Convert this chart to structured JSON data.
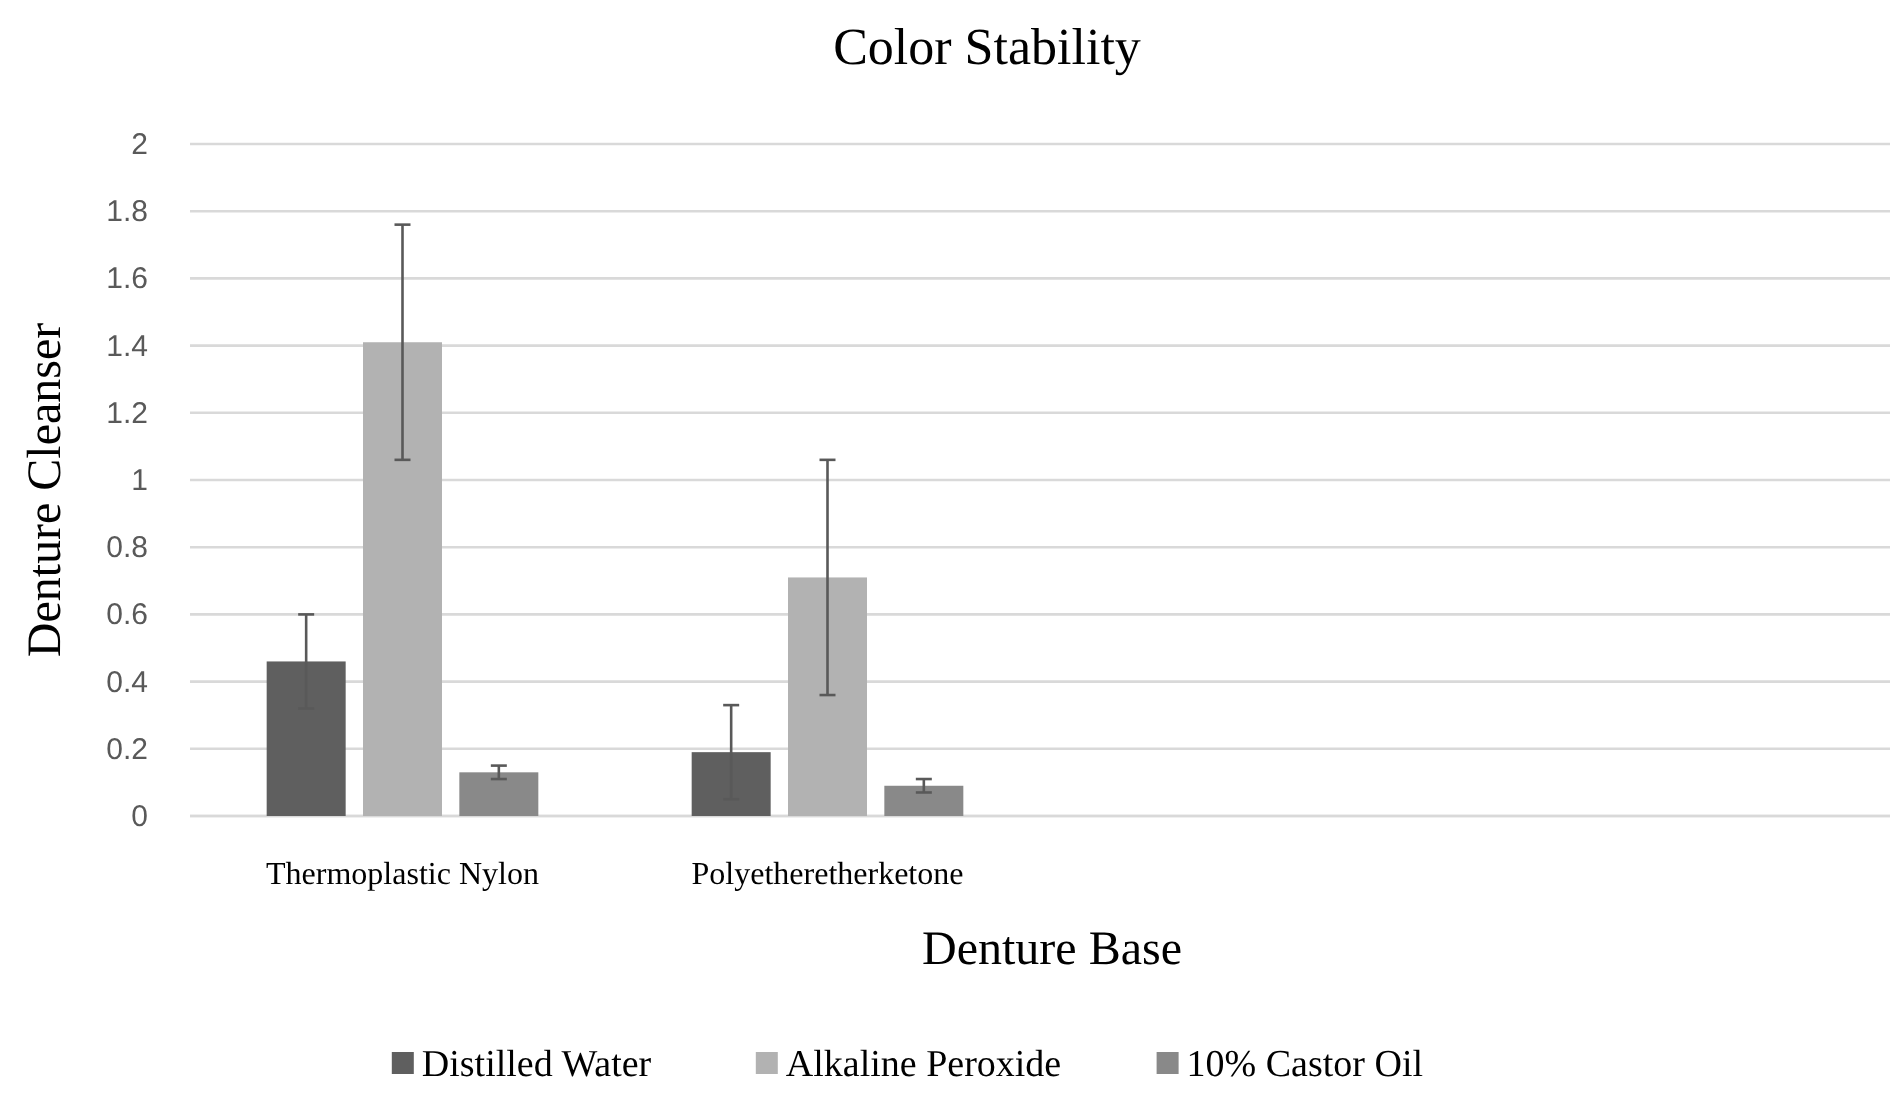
{
  "chart_data": {
    "type": "bar",
    "title": "Color Stability",
    "xlabel": "Denture Base",
    "ylabel": "Denture Cleanser",
    "categories": [
      "Thermoplastic Nylon",
      "Polyetheretherketone",
      null,
      null
    ],
    "series": [
      {
        "name": "Distilled Water",
        "color": "#5f5f5f",
        "values": [
          0.46,
          0.19,
          null,
          null
        ],
        "errors": [
          0.14,
          0.14,
          null,
          null
        ]
      },
      {
        "name": "Alkaline Peroxide",
        "color": "#b2b2b2",
        "values": [
          1.41,
          0.71,
          null,
          null
        ],
        "errors": [
          0.35,
          0.35,
          null,
          null
        ]
      },
      {
        "name": "10% Castor Oil",
        "color": "#898989",
        "values": [
          0.13,
          0.09,
          null,
          null
        ],
        "errors": [
          0.02,
          0.02,
          null,
          null
        ]
      }
    ],
    "ylim": [
      0,
      2
    ],
    "yticks": [
      0,
      0.2,
      0.4,
      0.6,
      0.8,
      1,
      1.2,
      1.4,
      1.6,
      1.8,
      2
    ],
    "grid": "y",
    "legend": "bottom"
  }
}
